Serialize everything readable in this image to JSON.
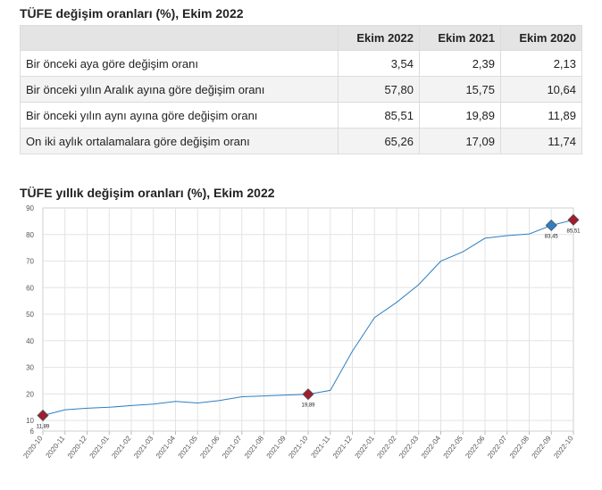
{
  "table": {
    "title": "TÜFE değişim oranları (%), Ekim 2022",
    "headers": [
      "",
      "Ekim 2022",
      "Ekim 2021",
      "Ekim 2020"
    ],
    "rows": [
      {
        "label": "Bir önceki aya göre değişim oranı",
        "values": [
          "3,54",
          "2,39",
          "2,13"
        ]
      },
      {
        "label": "Bir önceki yılın Aralık ayına göre değişim oranı",
        "values": [
          "57,80",
          "15,75",
          "10,64"
        ]
      },
      {
        "label": "Bir önceki yılın aynı ayına göre değişim oranı",
        "values": [
          "85,51",
          "19,89",
          "11,89"
        ]
      },
      {
        "label": "On iki aylık ortalamalara göre değişim oranı",
        "values": [
          "65,26",
          "17,09",
          "11,74"
        ]
      }
    ]
  },
  "chart_data": {
    "type": "line",
    "title": "TÜFE yıllık değişim oranları (%), Ekim 2022",
    "xlabel": "",
    "ylabel": "",
    "ylim": [
      6,
      90
    ],
    "yticks": [
      6,
      10,
      20,
      30,
      40,
      50,
      60,
      70,
      80,
      90
    ],
    "grid": true,
    "categories": [
      "2020-10",
      "2020-11",
      "2020-12",
      "2021-01",
      "2021-02",
      "2021-03",
      "2021-04",
      "2021-05",
      "2021-06",
      "2021-07",
      "2021-08",
      "2021-09",
      "2021-10",
      "2021-11",
      "2021-12",
      "2022-01",
      "2022-02",
      "2022-03",
      "2022-04",
      "2022-05",
      "2022-06",
      "2022-07",
      "2022-08",
      "2022-09",
      "2022-10"
    ],
    "series": [
      {
        "values": [
          11.89,
          14.03,
          14.6,
          14.97,
          15.61,
          16.19,
          17.14,
          16.59,
          17.53,
          18.95,
          19.25,
          19.58,
          19.89,
          21.31,
          36.08,
          48.69,
          54.44,
          61.14,
          69.97,
          73.5,
          78.62,
          79.6,
          80.21,
          83.45,
          85.51
        ],
        "color": "#2e7fc2"
      }
    ],
    "markers": [
      {
        "index": 0,
        "label": "11,89",
        "color": "#a01c2e"
      },
      {
        "index": 12,
        "label": "19,89",
        "color": "#a01c2e"
      },
      {
        "index": 23,
        "label": "83,45",
        "color": "#2e7fc2"
      },
      {
        "index": 24,
        "label": "85,51",
        "color": "#a01c2e"
      }
    ]
  }
}
